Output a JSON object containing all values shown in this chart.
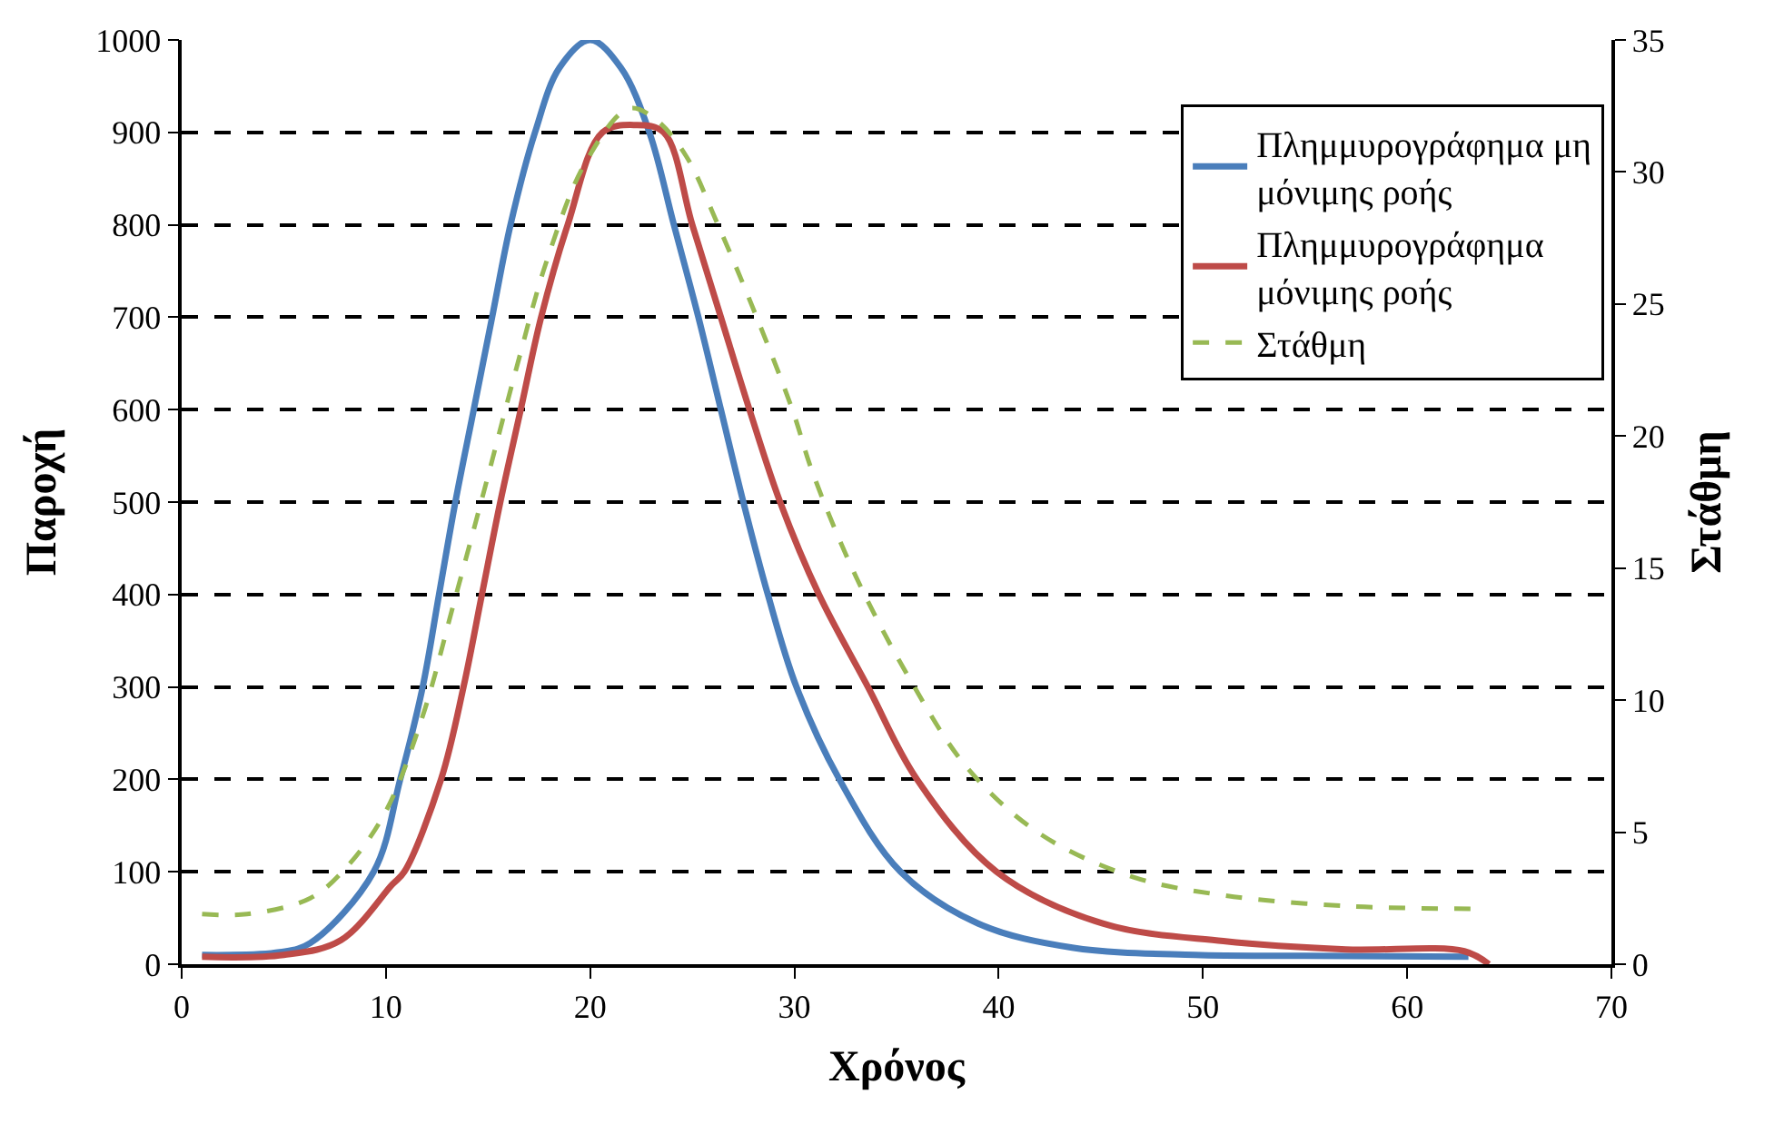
{
  "chart_data": {
    "type": "line",
    "xlabel": "Χρόνος",
    "ylabel": "Παροχή",
    "y2label": "Στάθμη",
    "xlim": [
      0,
      70
    ],
    "xticks": [
      0,
      10,
      20,
      30,
      40,
      50,
      60,
      70
    ],
    "ylim": [
      0,
      1000
    ],
    "yticks": [
      0,
      100,
      200,
      300,
      400,
      500,
      600,
      700,
      800,
      900,
      1000
    ],
    "y2lim": [
      0,
      35
    ],
    "y2ticks": [
      0,
      5,
      10,
      15,
      20,
      25,
      30,
      35
    ],
    "grid": "y",
    "legend": "top right",
    "series": [
      {
        "name": "Πλημμυρογράφημα μη μόνιμης ροής",
        "color": "#4a7ebb",
        "line_style": "solid",
        "x": [
          1,
          4.8,
          6.3,
          9.4,
          10.7,
          11.8,
          12.6,
          13.4,
          14.3,
          15.2,
          16.1,
          17.3,
          18.5,
          20,
          21.5,
          22.9,
          24.1,
          25.3,
          26.4,
          27.5,
          28.7,
          30.1,
          32.2,
          35.2,
          39,
          43.6,
          49.6,
          55,
          63
        ],
        "values": [
          10,
          13,
          23,
          100,
          200,
          300,
          400,
          500,
          600,
          700,
          800,
          900,
          970,
          1000,
          970,
          900,
          800,
          700,
          600,
          500,
          400,
          300,
          200,
          100,
          44,
          18,
          10,
          9,
          8
        ]
      },
      {
        "name": "Πλημμυρογράφημα μόνιμης ροής",
        "color": "#be4b48",
        "line_style": "solid",
        "x": [
          1,
          5,
          7.8,
          10.3,
          10.9,
          12.7,
          13.8,
          14.7,
          15.6,
          16.6,
          17.6,
          18.9,
          20.6,
          22.2,
          23.6,
          25,
          26.4,
          27.8,
          29.3,
          31.2,
          33.6,
          36,
          39.9,
          45.1,
          51,
          57,
          62.8,
          64
        ],
        "values": [
          8,
          10,
          26,
          86,
          100,
          200,
          300,
          400,
          500,
          600,
          700,
          800,
          900,
          908,
          900,
          800,
          700,
          600,
          500,
          400,
          300,
          200,
          100,
          44,
          25,
          16,
          14,
          0
        ]
      },
      {
        "name": "Στάθμη",
        "color": "#98b954",
        "line_style": "dashed",
        "axis": "y2",
        "x": [
          1,
          3.2,
          6.3,
          8.1,
          10,
          11.8,
          13.3,
          14.9,
          16.4,
          17.9,
          19.8,
          21.9,
          23.2,
          24.7,
          26.2,
          28.1,
          29.9,
          30.9,
          33,
          35.5,
          38.5,
          42.1,
          46.6,
          51.1,
          57.1,
          63.1
        ],
        "values": [
          1.9,
          1.9,
          2.5,
          3.7,
          5.8,
          9.4,
          13.6,
          18.2,
          22.6,
          26.7,
          30.4,
          32.4,
          32,
          30.6,
          28.1,
          24.6,
          21,
          18.6,
          14.7,
          11,
          7.4,
          4.9,
          3.3,
          2.6,
          2.2,
          2.1
        ]
      }
    ]
  }
}
